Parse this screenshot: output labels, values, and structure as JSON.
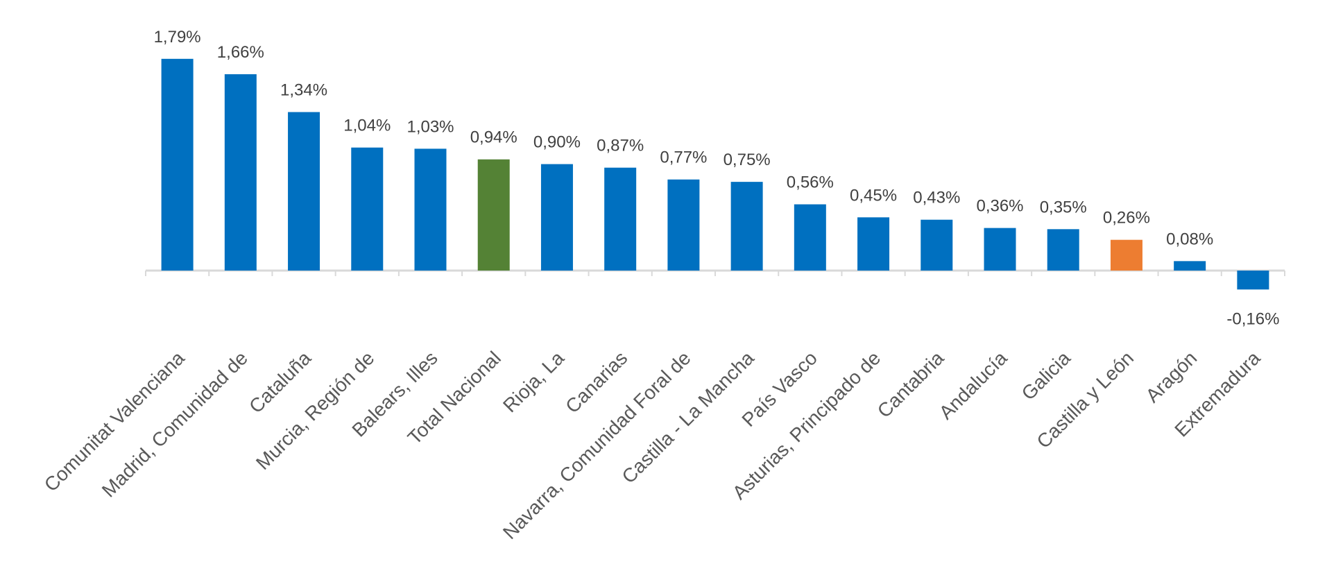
{
  "chart_data": {
    "type": "bar",
    "categories": [
      "Comunitat Valenciana",
      "Madrid, Comunidad de",
      "Cataluña",
      "Murcia, Región de",
      "Balears, Illes",
      "Total Nacional",
      "Rioja, La",
      "Canarias",
      "Navarra, Comunidad Foral de",
      "Castilla - La Mancha",
      "País Vasco",
      "Asturias, Principado de",
      "Cantabria",
      "Andalucía",
      "Galicia",
      "Castilla y León",
      "Aragón",
      "Extremadura"
    ],
    "values": [
      1.79,
      1.66,
      1.34,
      1.04,
      1.03,
      0.94,
      0.9,
      0.87,
      0.77,
      0.75,
      0.56,
      0.45,
      0.43,
      0.36,
      0.35,
      0.26,
      0.08,
      -0.16
    ],
    "data_labels": [
      "1,79%",
      "1,66%",
      "1,34%",
      "1,04%",
      "1,03%",
      "0,94%",
      "0,90%",
      "0,87%",
      "0,77%",
      "0,75%",
      "0,56%",
      "0,45%",
      "0,43%",
      "0,36%",
      "0,35%",
      "0,26%",
      "0,08%",
      "-0,16%"
    ],
    "colors": [
      "#0070C0",
      "#0070C0",
      "#0070C0",
      "#0070C0",
      "#0070C0",
      "#548235",
      "#0070C0",
      "#0070C0",
      "#0070C0",
      "#0070C0",
      "#0070C0",
      "#0070C0",
      "#0070C0",
      "#0070C0",
      "#0070C0",
      "#ED7D31",
      "#0070C0",
      "#0070C0"
    ],
    "title": "",
    "xlabel": "",
    "ylabel": "",
    "ylim": [
      -0.16,
      1.79
    ],
    "grid": false,
    "legend": "none",
    "axis_color": "#D9D9D9"
  }
}
